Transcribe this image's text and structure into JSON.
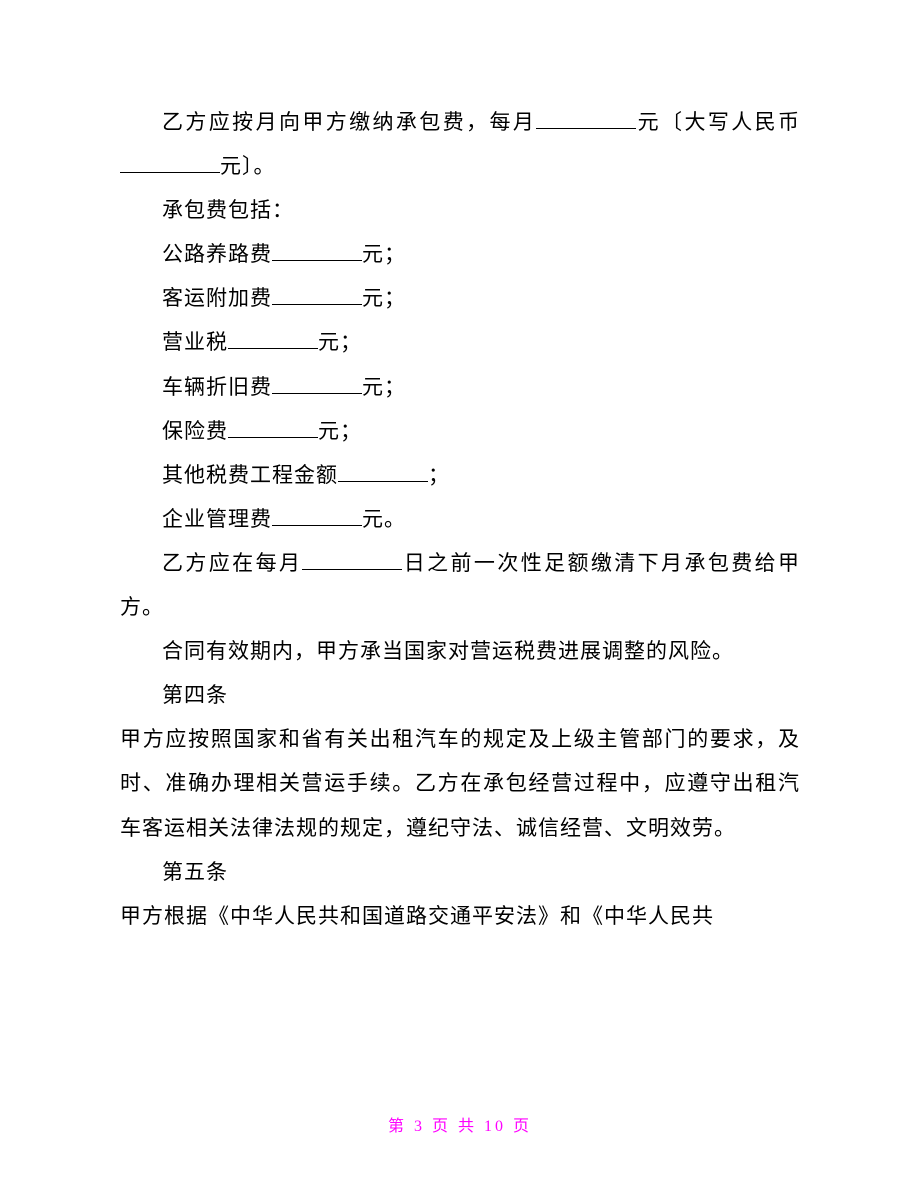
{
  "document": {
    "text_color": "#000000",
    "background_color": "#ffffff",
    "font_family": "SimSun",
    "font_size": 21,
    "line_height": 2.1,
    "paragraphs": {
      "p1_prefix": "乙方应按月向甲方缴纳承包费，每月",
      "p1_suffix": "元〔大写人民币",
      "p1_end": "元〕。",
      "p2": "承包费包括：",
      "p3_prefix": "公路养路费",
      "p3_suffix": "元；",
      "p4_prefix": "客运附加费",
      "p4_suffix": "元；",
      "p5_prefix": "营业税",
      "p5_suffix": "元；",
      "p6_prefix": "车辆折旧费",
      "p6_suffix": "元；",
      "p7_prefix": "保险费",
      "p7_suffix": "元；",
      "p8_prefix": "其他税费工程金额",
      "p8_suffix": "；",
      "p9_prefix": "企业管理费",
      "p9_suffix": "元。",
      "p10_prefix": "乙方应在每月",
      "p10_suffix": "日之前一次性足额缴清下月承包费给甲方。",
      "p11": "合同有效期内，甲方承当国家对营运税费进展调整的风险。",
      "p12": "第四条",
      "p13": "甲方应按照国家和省有关出租汽车的规定及上级主管部门的要求，及时、准确办理相关营运手续。乙方在承包经营过程中，应遵守出租汽车客运相关法律法规的规定，遵纪守法、诚信经营、文明效劳。",
      "p14": "第五条",
      "p15": "甲方根据《中华人民共和国道路交通平安法》和《中华人民共"
    },
    "footer": {
      "text_template": "第 {current} 页 共 {total} 页",
      "current_page": "3",
      "total_pages": "10",
      "color": "#ff00ff",
      "font_size": 16,
      "prefix": "第 ",
      "mid": " 页 共 ",
      "suffix": " 页"
    }
  }
}
